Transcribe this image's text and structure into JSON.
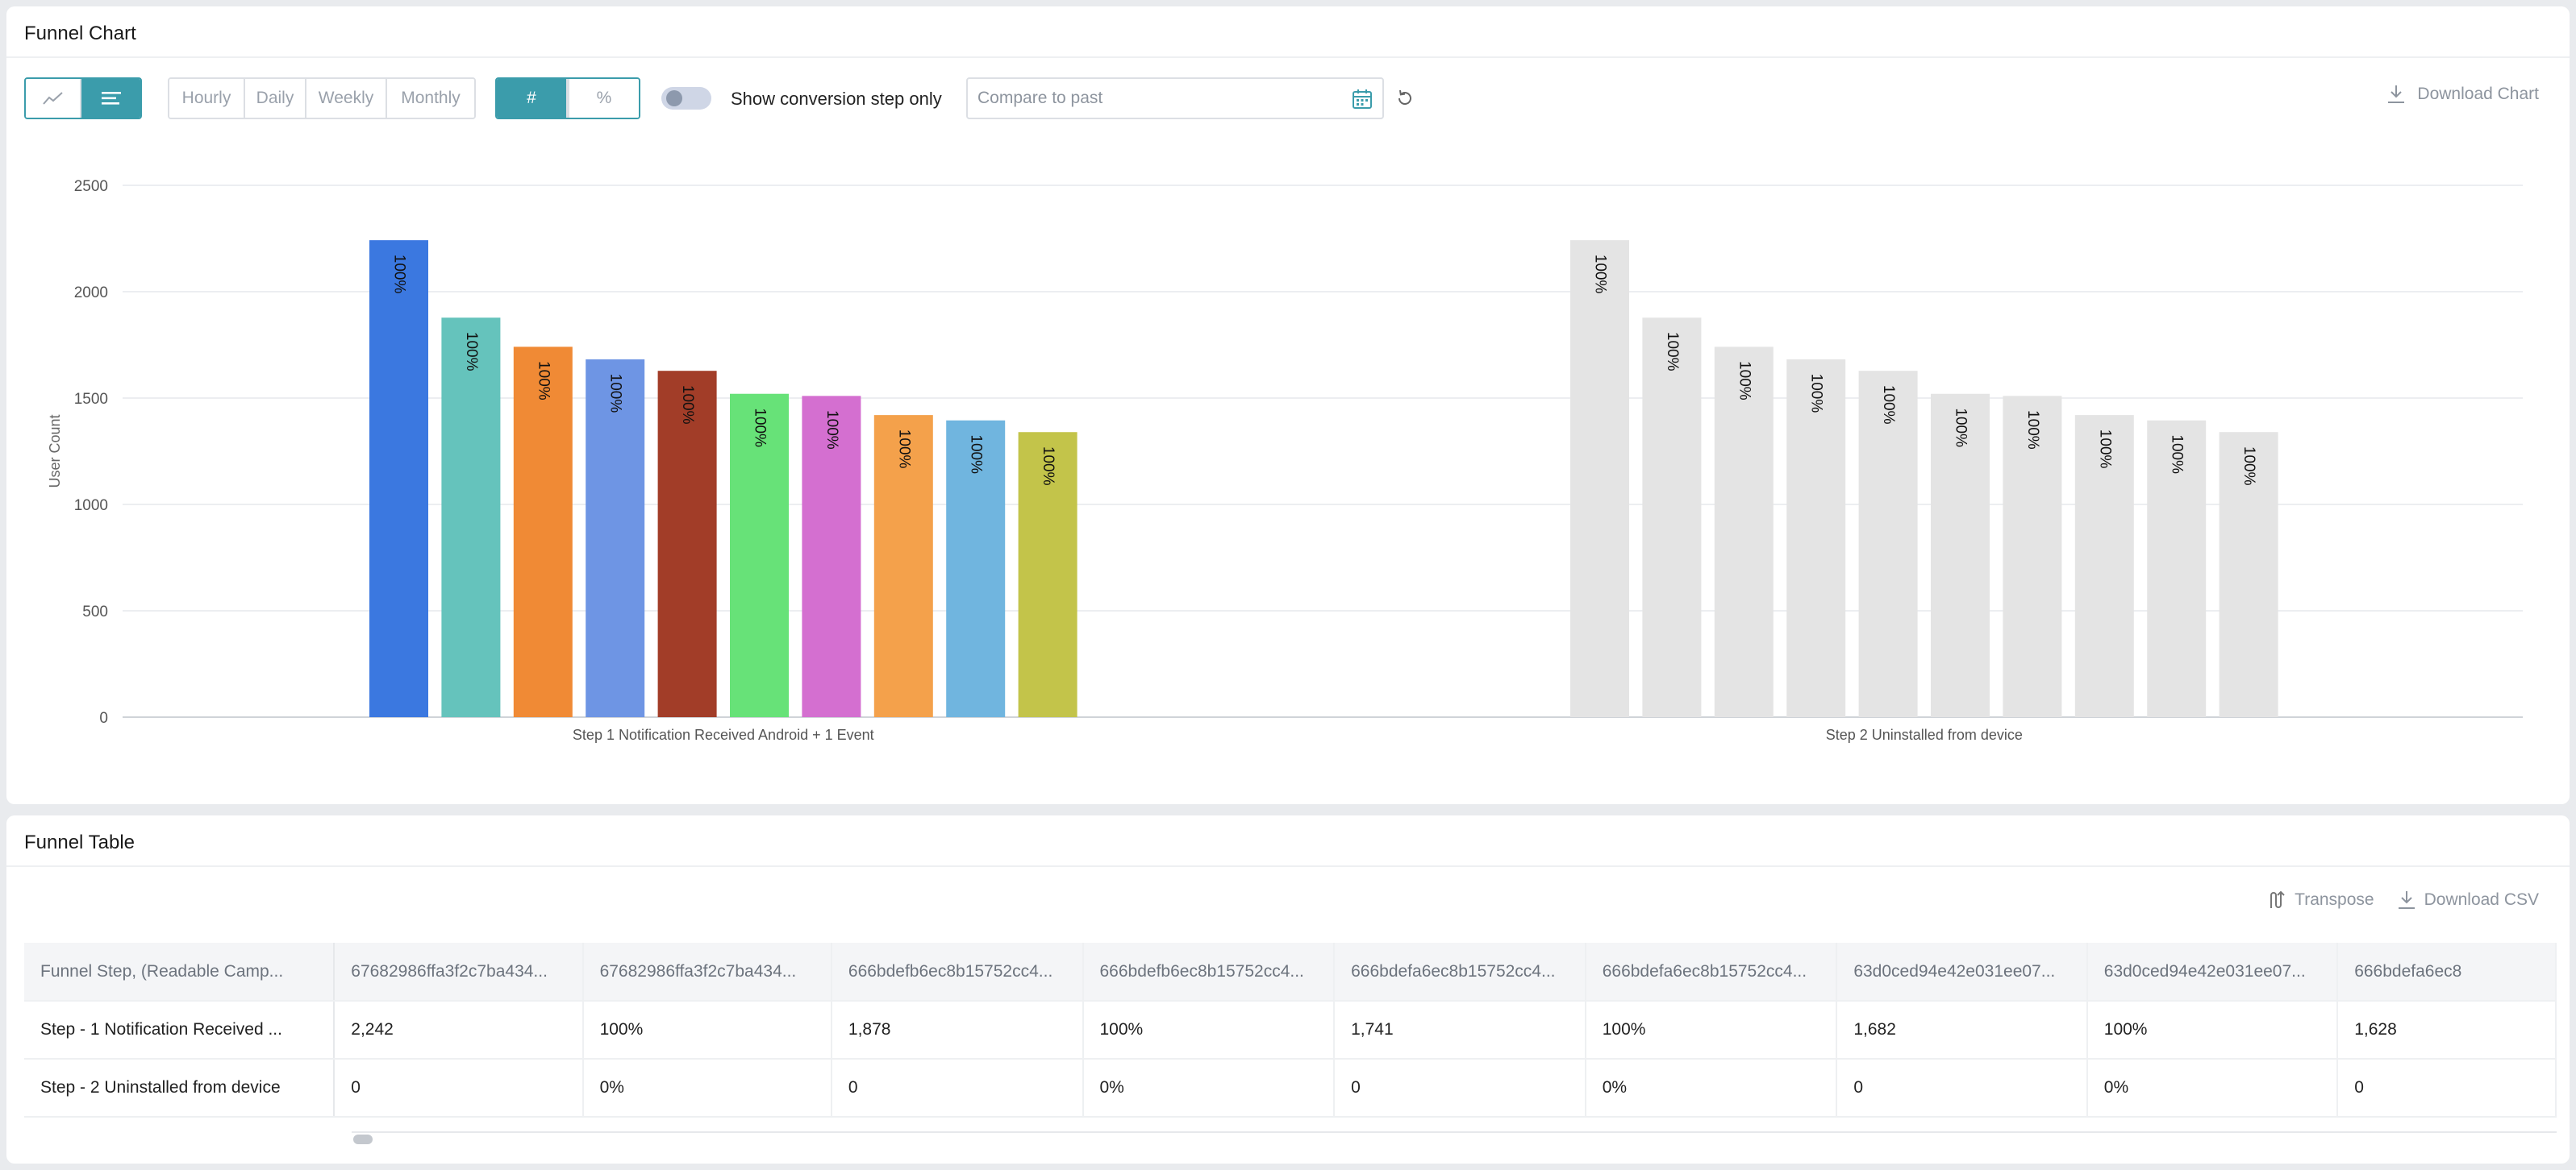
{
  "chart_card": {
    "title": "Funnel Chart",
    "view_modes": [
      {
        "icon": "line-chart-icon",
        "active": false
      },
      {
        "icon": "bar-chart-icon",
        "active": true
      }
    ],
    "granularity": [
      "Hourly",
      "Daily",
      "Weekly",
      "Monthly"
    ],
    "value_modes": [
      {
        "label": "#",
        "active": true
      },
      {
        "label": "%",
        "active": false
      }
    ],
    "toggle_label": "Show conversion step only",
    "compare_placeholder": "Compare to past",
    "download_label": "Download Chart"
  },
  "colors": {
    "accent": "#3b9cab",
    "inactive_bar": "#e4e4e4",
    "series": [
      "#3b78e0",
      "#65c3bc",
      "#f08a35",
      "#6e95e4",
      "#a23d28",
      "#67e278",
      "#d46fd0",
      "#f4a14b",
      "#70b5df",
      "#c3c44a"
    ]
  },
  "chart_data": {
    "type": "bar",
    "ylabel": "User Count",
    "xlabel": "",
    "ylim": [
      0,
      2500
    ],
    "yticks": [
      0,
      500,
      1000,
      1500,
      2000,
      2500
    ],
    "categories": [
      "Step 1 Notification Received Android + 1 Event",
      "Step 2 Uninstalled from device"
    ],
    "bars_per_category": 10,
    "step1_values": [
      2242,
      1878,
      1741,
      1682,
      1628,
      1520,
      1510,
      1420,
      1395,
      1340
    ],
    "step2_bar_heights_shown": [
      2242,
      1878,
      1741,
      1682,
      1628,
      1520,
      1510,
      1420,
      1395,
      1340
    ],
    "bar_label": "100%"
  },
  "table_card": {
    "title": "Funnel Table",
    "transpose_label": "Transpose",
    "download_label": "Download CSV",
    "headers": [
      "Funnel Step, (Readable Camp...",
      "67682986ffa3f2c7ba434...",
      "67682986ffa3f2c7ba434...",
      "666bdefb6ec8b15752cc4...",
      "666bdefb6ec8b15752cc4...",
      "666bdefa6ec8b15752cc4...",
      "666bdefa6ec8b15752cc4...",
      "63d0ced94e42e031ee07...",
      "63d0ced94e42e031ee07...",
      "666bdefa6ec8"
    ],
    "rows": [
      [
        "Step - 1 Notification Received ...",
        "2,242",
        "100%",
        "1,878",
        "100%",
        "1,741",
        "100%",
        "1,682",
        "100%",
        "1,628"
      ],
      [
        "Step - 2 Uninstalled from device",
        "0",
        "0%",
        "0",
        "0%",
        "0",
        "0%",
        "0",
        "0%",
        "0"
      ]
    ]
  }
}
